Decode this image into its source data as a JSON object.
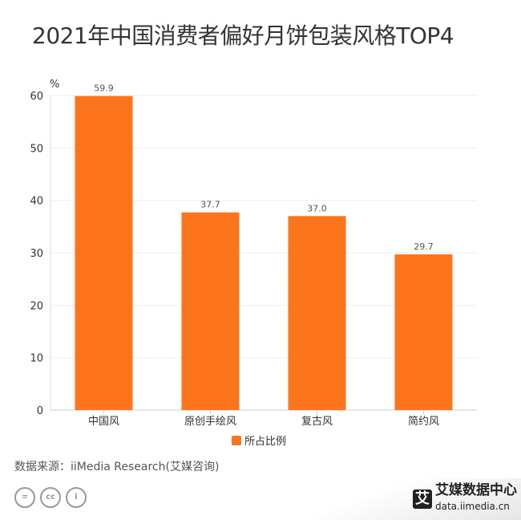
{
  "title": "2021年中国消费者偏好月饼包装风格TOP4",
  "chart_data": {
    "type": "bar",
    "title": "2021年中国消费者偏好月饼包装风格TOP4",
    "categories": [
      "中国风",
      "原创手绘风",
      "复古风",
      "简约风"
    ],
    "series": [
      {
        "name": "所占比例",
        "values": [
          59.9,
          37.7,
          37.0,
          29.7
        ],
        "color": "#FC741B"
      }
    ],
    "ylabel": "%",
    "ylim": [
      0,
      60
    ],
    "yticks": [
      0,
      10,
      20,
      30,
      40,
      50,
      60
    ],
    "grid": true,
    "legend": "bottom",
    "data_labels": [
      "59.9",
      "37.7",
      "37.0",
      "29.7"
    ]
  },
  "source": "数据来源：iiMedia Research(艾媒咨询)",
  "license_icons": [
    "equals-icon",
    "cc-icon",
    "person-icon"
  ],
  "license_glyphs": [
    "=",
    "cc",
    "i"
  ],
  "logo": {
    "mark": "艾",
    "name": "艾媒数据中心",
    "url": "data.iimedia.cn"
  }
}
